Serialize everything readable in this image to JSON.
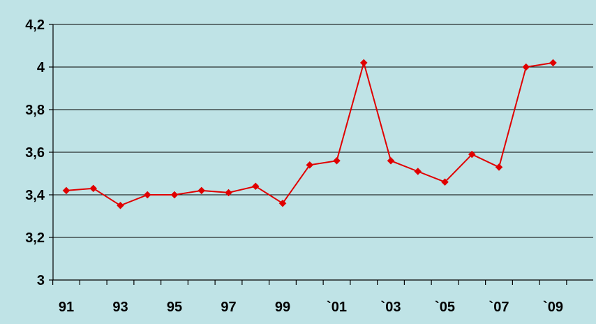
{
  "colors": {
    "background": "#bfe3e6",
    "series": "#e00000",
    "gridline": "#000000",
    "text": "#000000"
  },
  "chart_data": {
    "type": "line",
    "title": "",
    "xlabel": "",
    "ylabel": "",
    "x": [
      1991,
      1992,
      1993,
      1994,
      1995,
      1996,
      1997,
      1998,
      1999,
      2000,
      2001,
      2002,
      2003,
      2004,
      2005,
      2006,
      2007,
      2008,
      2009
    ],
    "x_tick_labels": [
      "91",
      "93",
      "95",
      "97",
      "99",
      "`01",
      "`03",
      "`05",
      "`07",
      "`09"
    ],
    "x_tick_values": [
      1991,
      1993,
      1995,
      1997,
      1999,
      2001,
      2003,
      2005,
      2007,
      2009
    ],
    "ylim": [
      3,
      4.2
    ],
    "y_ticks": [
      3,
      3.2,
      3.4,
      3.6,
      3.8,
      4,
      4.2
    ],
    "y_tick_labels": [
      "3",
      "3,2",
      "3,4",
      "3,6",
      "3,8",
      "4",
      "4,2"
    ],
    "grid": "horizontal",
    "legend": "none",
    "series": [
      {
        "values": [
          3.42,
          3.43,
          3.35,
          3.4,
          3.4,
          3.42,
          3.41,
          3.44,
          3.36,
          3.54,
          3.56,
          4.02,
          3.56,
          3.51,
          3.46,
          3.59,
          3.53,
          4.0,
          4.02
        ],
        "color": "#e00000",
        "marker": "diamond"
      }
    ]
  }
}
